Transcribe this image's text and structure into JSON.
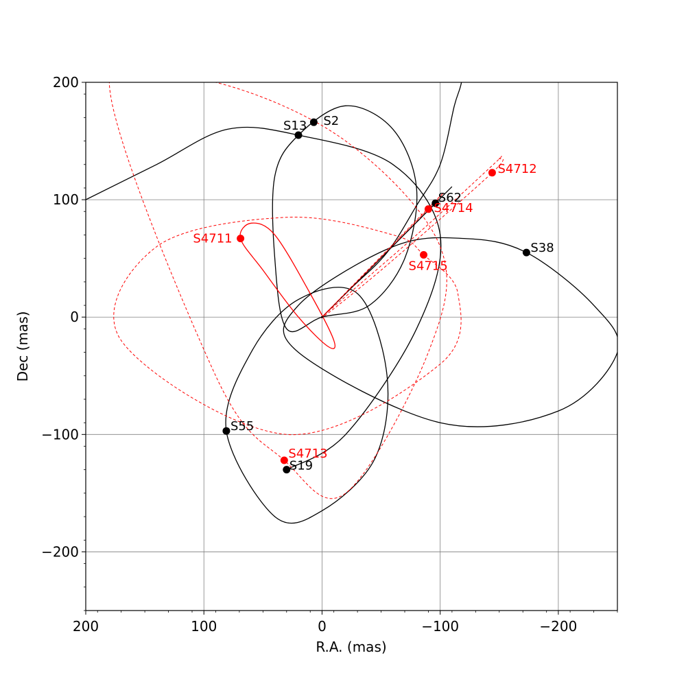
{
  "chart_data": {
    "type": "scatter",
    "title": "",
    "xlabel": "R.A. (mas)",
    "ylabel": "Dec (mas)",
    "xlim": [
      200,
      -250
    ],
    "ylim": [
      -250,
      200
    ],
    "x_ticks": [
      200,
      100,
      0,
      -100,
      -200
    ],
    "y_ticks": [
      200,
      100,
      0,
      -100,
      -200
    ],
    "x_tick_labels": [
      "200",
      "100",
      "0",
      "−100",
      "−200"
    ],
    "y_tick_labels": [
      "200",
      "100",
      "0",
      "−100",
      "−200"
    ],
    "grid": true,
    "colors": {
      "known": "#000000",
      "new": "#ff0000",
      "grid": "#808080"
    },
    "stars": [
      {
        "name": "S2",
        "x": 7,
        "y": 166,
        "group": "known"
      },
      {
        "name": "S13",
        "x": 20,
        "y": 155,
        "group": "known"
      },
      {
        "name": "S62",
        "x": -96,
        "y": 97,
        "group": "known"
      },
      {
        "name": "S38",
        "x": -173,
        "y": 55,
        "group": "known"
      },
      {
        "name": "S55",
        "x": 81,
        "y": -97,
        "group": "known"
      },
      {
        "name": "S19",
        "x": 30,
        "y": -130,
        "group": "known"
      },
      {
        "name": "S4711",
        "x": 69,
        "y": 67,
        "group": "new"
      },
      {
        "name": "S4712",
        "x": -144,
        "y": 123,
        "group": "new"
      },
      {
        "name": "S4713",
        "x": 32,
        "y": -122,
        "group": "new"
      },
      {
        "name": "S4714",
        "x": -90,
        "y": 92,
        "group": "new"
      },
      {
        "name": "S4715",
        "x": -86,
        "y": 53,
        "group": "new"
      }
    ],
    "orbits": [
      {
        "star": "S2",
        "group": "known",
        "style": "solid",
        "points": [
          [
            0,
            0
          ],
          [
            -25,
            25
          ],
          [
            -55,
            55
          ],
          [
            -80,
            95
          ],
          [
            -100,
            130
          ],
          [
            -112,
            180
          ],
          [
            -118,
            200
          ],
          [
            -122,
            230
          ]
        ]
      },
      {
        "star": "S13",
        "group": "known",
        "style": "solid",
        "points": [
          [
            20,
            155
          ],
          [
            -20,
            180
          ],
          [
            -60,
            160
          ],
          [
            -80,
            110
          ],
          [
            -70,
            50
          ],
          [
            -40,
            10
          ],
          [
            0,
            0
          ],
          [
            30,
            -10
          ],
          [
            40,
            50
          ],
          [
            40,
            120
          ],
          [
            20,
            155
          ]
        ]
      },
      {
        "star": "S62",
        "group": "known",
        "style": "solid",
        "points": [
          [
            0,
            0
          ],
          [
            -96,
            97
          ],
          [
            -99,
            100
          ],
          [
            0,
            0
          ]
        ]
      },
      {
        "star": "S38",
        "group": "known",
        "style": "solid",
        "points": [
          [
            -173,
            55
          ],
          [
            -230,
            10
          ],
          [
            -250,
            -30
          ],
          [
            -200,
            -80
          ],
          [
            -100,
            -90
          ],
          [
            20,
            -30
          ],
          [
            20,
            10
          ],
          [
            -60,
            60
          ],
          [
            -120,
            67
          ],
          [
            -173,
            55
          ]
        ]
      },
      {
        "star": "S55",
        "group": "known",
        "style": "solid",
        "points": [
          [
            81,
            -97
          ],
          [
            60,
            -30
          ],
          [
            20,
            15
          ],
          [
            -30,
            20
          ],
          [
            -55,
            -50
          ],
          [
            -45,
            -120
          ],
          [
            0,
            -165
          ],
          [
            40,
            -170
          ],
          [
            81,
            -97
          ]
        ]
      },
      {
        "star": "S19",
        "group": "known",
        "style": "solid",
        "points": [
          [
            30,
            -130
          ],
          [
            -20,
            -100
          ],
          [
            -80,
            -10
          ],
          [
            -100,
            70
          ],
          [
            -60,
            130
          ],
          [
            20,
            155
          ],
          [
            80,
            160
          ],
          [
            140,
            130
          ],
          [
            200,
            100
          ]
        ]
      },
      {
        "star": "S4711",
        "group": "new",
        "style": "solid",
        "points": [
          [
            69,
            67
          ],
          [
            60,
            80
          ],
          [
            40,
            70
          ],
          [
            10,
            20
          ],
          [
            -10,
            -20
          ],
          [
            -5,
            -25
          ],
          [
            20,
            0
          ],
          [
            50,
            40
          ],
          [
            69,
            67
          ]
        ]
      },
      {
        "star": "S4712",
        "group": "new",
        "style": "dashed",
        "points": [
          [
            0,
            0
          ],
          [
            -50,
            40
          ],
          [
            -144,
            123
          ],
          [
            -150,
            135
          ],
          [
            -145,
            130
          ],
          [
            -80,
            70
          ],
          [
            0,
            0
          ]
        ]
      },
      {
        "star": "S4713",
        "group": "new",
        "style": "dashed",
        "points": [
          [
            32,
            -122
          ],
          [
            90,
            -50
          ],
          [
            180,
            200
          ],
          [
            90,
            200
          ],
          [
            -20,
            150
          ],
          [
            -100,
            60
          ],
          [
            -90,
            -30
          ],
          [
            -20,
            -150
          ],
          [
            32,
            -122
          ]
        ]
      },
      {
        "star": "S4714",
        "group": "new",
        "style": "dashed",
        "points": [
          [
            0,
            0
          ],
          [
            -90,
            92
          ],
          [
            -92,
            95
          ],
          [
            0,
            0
          ]
        ]
      },
      {
        "star": "S4715",
        "group": "new",
        "style": "dashed",
        "points": [
          [
            -86,
            53
          ],
          [
            -115,
            20
          ],
          [
            -100,
            -40
          ],
          [
            30,
            -100
          ],
          [
            170,
            -20
          ],
          [
            140,
            60
          ],
          [
            30,
            85
          ],
          [
            -60,
            70
          ],
          [
            -86,
            53
          ]
        ]
      }
    ]
  }
}
